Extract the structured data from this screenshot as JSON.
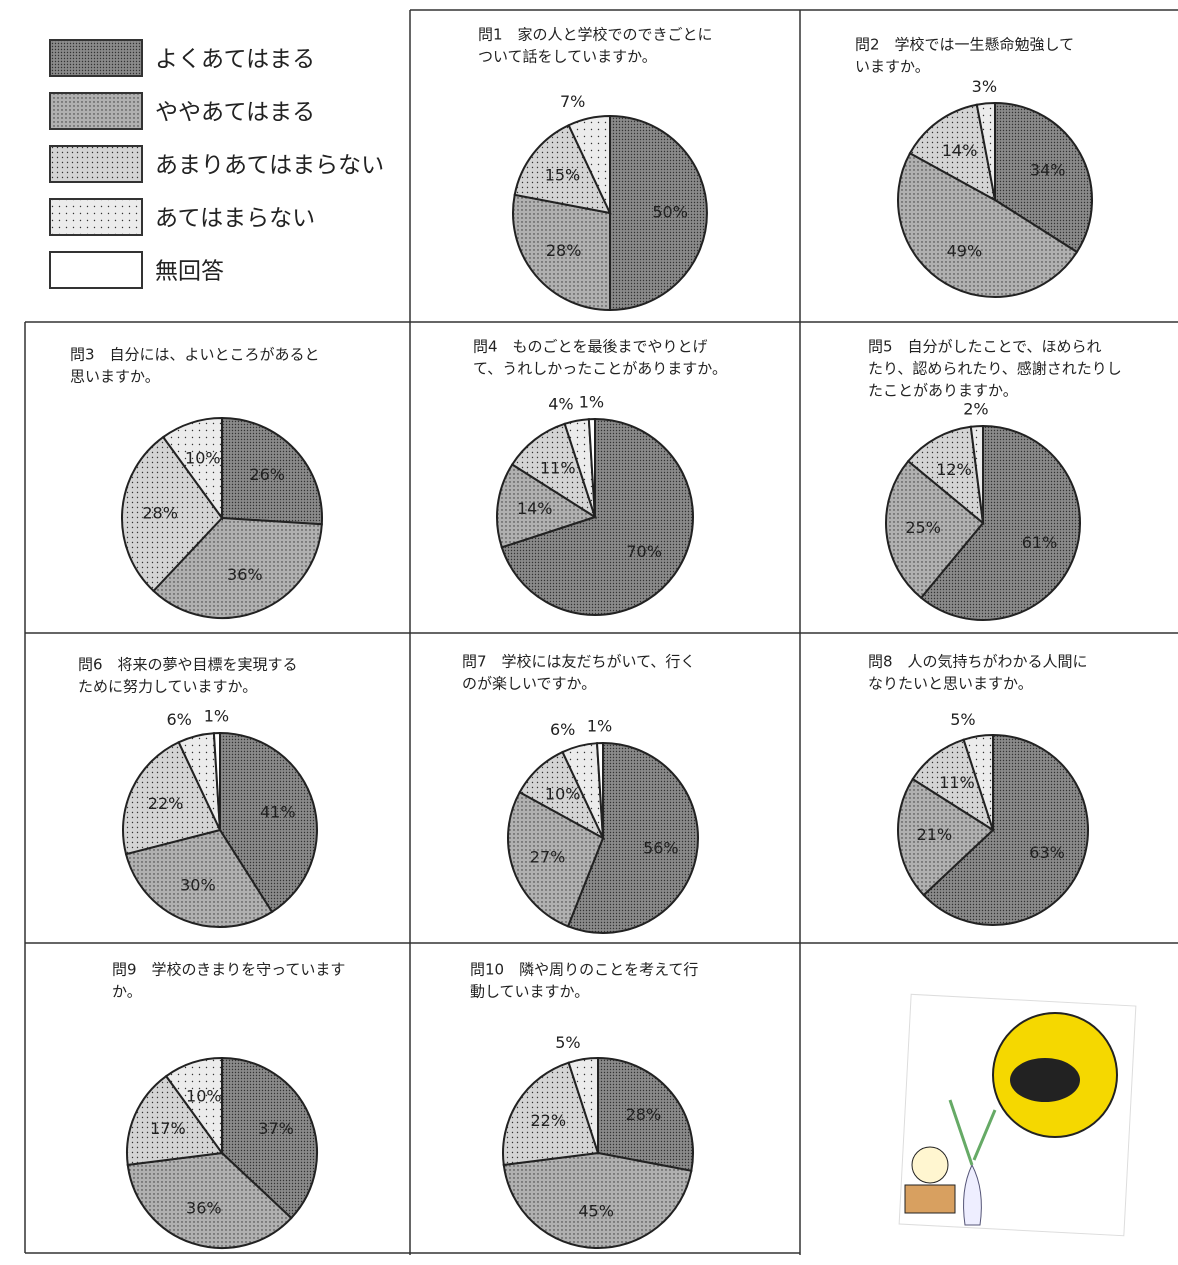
{
  "legend": {
    "items": [
      {
        "label": "よくあてはまる",
        "color": "#8a8a8a"
      },
      {
        "label": "ややあてはまる",
        "color": "#b0b0b0"
      },
      {
        "label": "あまりあてはまらない",
        "color": "#d4d4d4"
      },
      {
        "label": "あてはまらない",
        "color": "#ececec"
      },
      {
        "label": "無回答",
        "color": "#ffffff"
      }
    ]
  },
  "chart_data": [
    {
      "type": "pie",
      "title_lines": [
        "問1　家の人と学校でのできごとに",
        "ついて話をしていますか。"
      ],
      "values": [
        50,
        28,
        15,
        7
      ],
      "value_labels": [
        "50%",
        "28%",
        "15%",
        "7%"
      ]
    },
    {
      "type": "pie",
      "title_lines": [
        "問2　学校では一生懸命勉強して",
        "いますか。"
      ],
      "values": [
        34,
        49,
        14,
        3
      ],
      "value_labels": [
        "34%",
        "49%",
        "14%",
        "3%"
      ]
    },
    {
      "type": "pie",
      "title_lines": [
        "問3　自分には、よいところがあると",
        "思いますか。"
      ],
      "values": [
        26,
        36,
        28,
        10
      ],
      "value_labels": [
        "26%",
        "36%",
        "28%",
        "10%"
      ]
    },
    {
      "type": "pie",
      "title_lines": [
        "問4　ものごとを最後までやりとげ",
        "て、うれしかったことがありますか。"
      ],
      "values": [
        70,
        14,
        11,
        4,
        1
      ],
      "value_labels": [
        "70%",
        "14%",
        "11%",
        "4%",
        "1%"
      ]
    },
    {
      "type": "pie",
      "title_lines": [
        "問5　自分がしたことで、ほめられ",
        "たり、認められたり、感謝されたりし",
        "たことがありますか。"
      ],
      "values": [
        61,
        25,
        12,
        2
      ],
      "value_labels": [
        "61%",
        "25%",
        "12%",
        "2%"
      ]
    },
    {
      "type": "pie",
      "title_lines": [
        "問6　将来の夢や目標を実現する",
        "ために努力していますか。"
      ],
      "values": [
        41,
        30,
        22,
        6,
        1
      ],
      "value_labels": [
        "41%",
        "30%",
        "22%",
        "6%",
        "1%"
      ]
    },
    {
      "type": "pie",
      "title_lines": [
        "問7　学校には友だちがいて、行く",
        "のが楽しいですか。"
      ],
      "values": [
        56,
        27,
        10,
        6,
        1
      ],
      "value_labels": [
        "56%",
        "27%",
        "10%",
        "6%",
        "1%"
      ]
    },
    {
      "type": "pie",
      "title_lines": [
        "問8　人の気持ちがわかる人間に",
        "なりたいと思いますか。"
      ],
      "values": [
        63,
        21,
        11,
        5
      ],
      "value_labels": [
        "63%",
        "21%",
        "11%",
        "5%"
      ]
    },
    {
      "type": "pie",
      "title_lines": [
        "問9　学校のきまりを守っています",
        "か。"
      ],
      "values": [
        37,
        36,
        17,
        10
      ],
      "value_labels": [
        "37%",
        "36%",
        "17%",
        "10%"
      ]
    },
    {
      "type": "pie",
      "title_lines": [
        "問10　隣や周りのことを考えて行",
        "動していますか。"
      ],
      "values": [
        28,
        45,
        22,
        5
      ],
      "value_labels": [
        "28%",
        "45%",
        "22%",
        "5%"
      ]
    }
  ]
}
